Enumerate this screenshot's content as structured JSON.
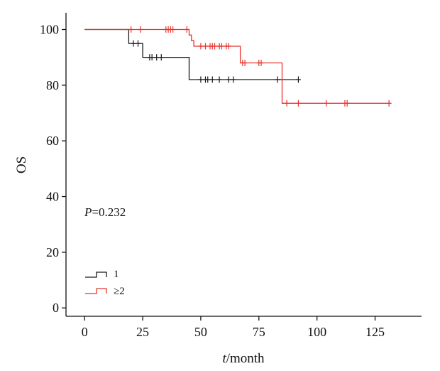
{
  "chart_data": {
    "type": "line",
    "subtype": "kaplan-meier",
    "title": "",
    "xlabel_italic": "t",
    "xlabel_rest": "/month",
    "ylabel": "OS",
    "xlim": [
      -8,
      145
    ],
    "ylim": [
      -3,
      106
    ],
    "x_ticks": [
      0,
      25,
      50,
      75,
      100,
      125
    ],
    "y_ticks": [
      0,
      20,
      40,
      60,
      80,
      100
    ],
    "grid": false,
    "legend_position": "lower-left",
    "annotation": {
      "label_italic": "P",
      "text": "=0.232"
    },
    "colors": {
      "series1": "#1a1a1a",
      "series2": "#e8342f",
      "axis": "#111111"
    },
    "series": [
      {
        "name": "1",
        "color": "#1a1a1a",
        "steps": [
          [
            0,
            100
          ],
          [
            19,
            100
          ],
          [
            19,
            95
          ],
          [
            25,
            95
          ],
          [
            25,
            90
          ],
          [
            45,
            90
          ],
          [
            45,
            82
          ],
          [
            92,
            82
          ]
        ],
        "censored": [
          [
            21,
            95
          ],
          [
            23,
            95
          ],
          [
            28,
            90
          ],
          [
            29,
            90
          ],
          [
            31,
            90
          ],
          [
            33,
            90
          ],
          [
            50,
            82
          ],
          [
            52,
            82
          ],
          [
            53,
            82
          ],
          [
            55,
            82
          ],
          [
            58,
            82
          ],
          [
            62,
            82
          ],
          [
            64,
            82
          ],
          [
            83,
            82
          ],
          [
            92,
            82
          ]
        ]
      },
      {
        "name": "≥2",
        "color": "#e8342f",
        "steps": [
          [
            0,
            100
          ],
          [
            45,
            100
          ],
          [
            45,
            98
          ],
          [
            46,
            98
          ],
          [
            46,
            96
          ],
          [
            47,
            96
          ],
          [
            47,
            94
          ],
          [
            67,
            94
          ],
          [
            67,
            88
          ],
          [
            85,
            88
          ],
          [
            85,
            73.5
          ],
          [
            132,
            73.5
          ]
        ],
        "censored": [
          [
            20,
            100
          ],
          [
            24,
            100
          ],
          [
            35,
            100
          ],
          [
            36,
            100
          ],
          [
            37,
            100
          ],
          [
            38,
            100
          ],
          [
            44,
            100
          ],
          [
            50,
            94
          ],
          [
            52,
            94
          ],
          [
            54,
            94
          ],
          [
            55,
            94
          ],
          [
            56,
            94
          ],
          [
            58,
            94
          ],
          [
            59,
            94
          ],
          [
            61,
            94
          ],
          [
            62,
            94
          ],
          [
            68,
            88
          ],
          [
            69,
            88
          ],
          [
            75,
            88
          ],
          [
            76,
            88
          ],
          [
            87,
            73.5
          ],
          [
            92,
            73.5
          ],
          [
            104,
            73.5
          ],
          [
            112,
            73.5
          ],
          [
            113,
            73.5
          ],
          [
            131,
            73.5
          ]
        ]
      }
    ]
  }
}
